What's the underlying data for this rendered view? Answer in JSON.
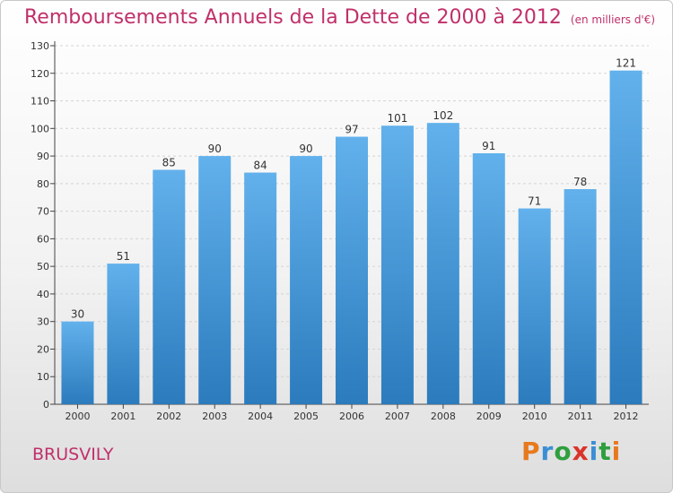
{
  "title": "Remboursements Annuels de la Dette de 2000 à 2012",
  "unit": "(en milliers d'€)",
  "place": "BRUSVILY",
  "logo": {
    "letters": [
      "P",
      "r",
      "o",
      "x",
      "i",
      "t",
      "i"
    ],
    "colors": [
      "#e8791d",
      "#3a8fd4",
      "#2e9f3e",
      "#d9342b",
      "#3a8fd4",
      "#2e9f3e",
      "#e8791d"
    ]
  },
  "colors": {
    "bar_light": "#62b1ec",
    "bar_dark": "#2b7bbd",
    "text": "#333333",
    "accent": "#c0306a"
  },
  "chart_data": {
    "type": "bar",
    "categories": [
      "2000",
      "2001",
      "2002",
      "2003",
      "2004",
      "2005",
      "2006",
      "2007",
      "2008",
      "2009",
      "2010",
      "2011",
      "2012"
    ],
    "values": [
      30,
      51,
      85,
      90,
      84,
      90,
      97,
      101,
      102,
      91,
      71,
      78,
      121
    ],
    "ylim": [
      0,
      130
    ],
    "yticks": [
      0,
      10,
      20,
      30,
      40,
      50,
      60,
      70,
      80,
      90,
      100,
      110,
      120,
      130
    ],
    "grid": "horizontal",
    "legend": "none"
  }
}
